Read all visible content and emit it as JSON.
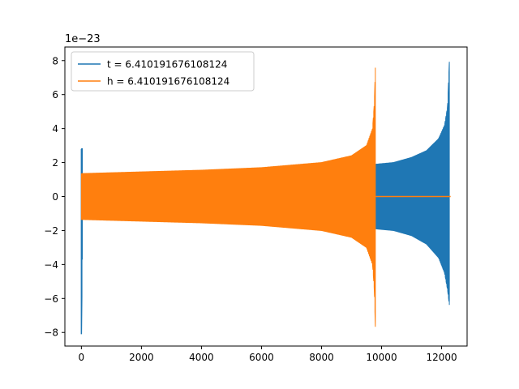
{
  "chart_data": {
    "type": "line",
    "title": "",
    "xlabel": "",
    "ylabel": "",
    "y_offset_label": "1e−23",
    "xlim": [
      -550,
      12850
    ],
    "ylim": [
      -8.8,
      8.8
    ],
    "x_ticks": [
      0,
      2000,
      4000,
      6000,
      8000,
      10000,
      12000
    ],
    "x_tick_labels": [
      "0",
      "2000",
      "4000",
      "6000",
      "8000",
      "10000",
      "12000"
    ],
    "y_ticks": [
      -8,
      -6,
      -4,
      -2,
      0,
      2,
      4,
      6,
      8
    ],
    "y_tick_labels": [
      "−8",
      "−6",
      "−4",
      "−2",
      "0",
      "2",
      "4",
      "6",
      "8"
    ],
    "grid": false,
    "legend_position": "top-left",
    "series": [
      {
        "name": "t = 6.410191676108124",
        "color": "#1f77b4",
        "envelope": {
          "start_spike": [
            {
              "x": 0,
              "upper": 2.8,
              "lower": -8.1
            },
            {
              "x": 40,
              "upper": 2.8,
              "lower": -1.6
            }
          ],
          "body": [
            {
              "x": 9800,
              "upper": 1.9,
              "lower": -1.9
            },
            {
              "x": 10400,
              "upper": 2.0,
              "lower": -2.0
            },
            {
              "x": 11000,
              "upper": 2.3,
              "lower": -2.3
            },
            {
              "x": 11500,
              "upper": 2.7,
              "lower": -2.8
            },
            {
              "x": 11900,
              "upper": 3.4,
              "lower": -3.6
            },
            {
              "x": 12100,
              "upper": 4.2,
              "lower": -4.5
            },
            {
              "x": 12200,
              "upper": 5.3,
              "lower": -5.5
            },
            {
              "x": 12260,
              "upper": 8.0,
              "lower": -6.4
            }
          ],
          "end_x": 12300
        }
      },
      {
        "name": "h = 6.410191676108124",
        "color": "#ff7f0e",
        "envelope": {
          "body": [
            {
              "x": 0,
              "upper": 1.35,
              "lower": -1.35
            },
            {
              "x": 2000,
              "upper": 1.45,
              "lower": -1.45
            },
            {
              "x": 4000,
              "upper": 1.55,
              "lower": -1.55
            },
            {
              "x": 6000,
              "upper": 1.7,
              "lower": -1.7
            },
            {
              "x": 8000,
              "upper": 2.0,
              "lower": -2.0
            },
            {
              "x": 9000,
              "upper": 2.4,
              "lower": -2.4
            },
            {
              "x": 9500,
              "upper": 3.0,
              "lower": -3.0
            },
            {
              "x": 9700,
              "upper": 4.0,
              "lower": -4.0
            },
            {
              "x": 9760,
              "upper": 5.5,
              "lower": -5.5
            },
            {
              "x": 9800,
              "upper": 8.0,
              "lower": -8.1
            }
          ],
          "tail": [
            {
              "x": 9800,
              "y": 0
            },
            {
              "x": 12300,
              "y": 0
            }
          ]
        }
      }
    ]
  }
}
